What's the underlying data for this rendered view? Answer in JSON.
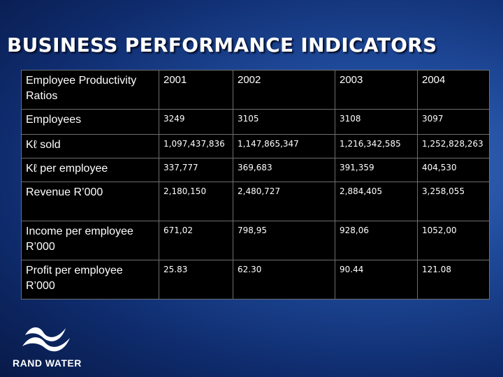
{
  "title": "BUSINESS PERFORMANCE INDICATORS",
  "table": {
    "header_label": "Employee Productivity Ratios",
    "years": [
      "2001",
      "2002",
      "2003",
      "2004"
    ],
    "rows": [
      {
        "label": "Employees",
        "values": [
          "3249",
          "3105",
          "3108",
          "3097"
        ]
      },
      {
        "label": "Kℓ sold",
        "values": [
          "1,097,437,836",
          "1,147,865,347",
          "1,216,342,585",
          "1,252,828,263"
        ]
      },
      {
        "label": "Kℓ per employee",
        "values": [
          "337,777",
          "369,683",
          "391,359",
          "404,530"
        ]
      },
      {
        "label": "Revenue R’000",
        "values": [
          "2,180,150",
          "2,480,727",
          "2,884,405",
          "3,258,055"
        ]
      },
      {
        "label": "Income per employee R’000",
        "values": [
          "671,02",
          "798,95",
          "928,06",
          "1052,00"
        ]
      },
      {
        "label": "Profit per employee R’000",
        "values": [
          "25.83",
          "62.30",
          "90.44",
          "121.08"
        ]
      }
    ]
  },
  "logo": {
    "text": "RAND WATER",
    "icon": "rand-water-wave-icon"
  },
  "colors": {
    "background": "#1f4a9a",
    "table_bg": "#000000",
    "text": "#ffffff",
    "grid": "#6e6e6e"
  }
}
